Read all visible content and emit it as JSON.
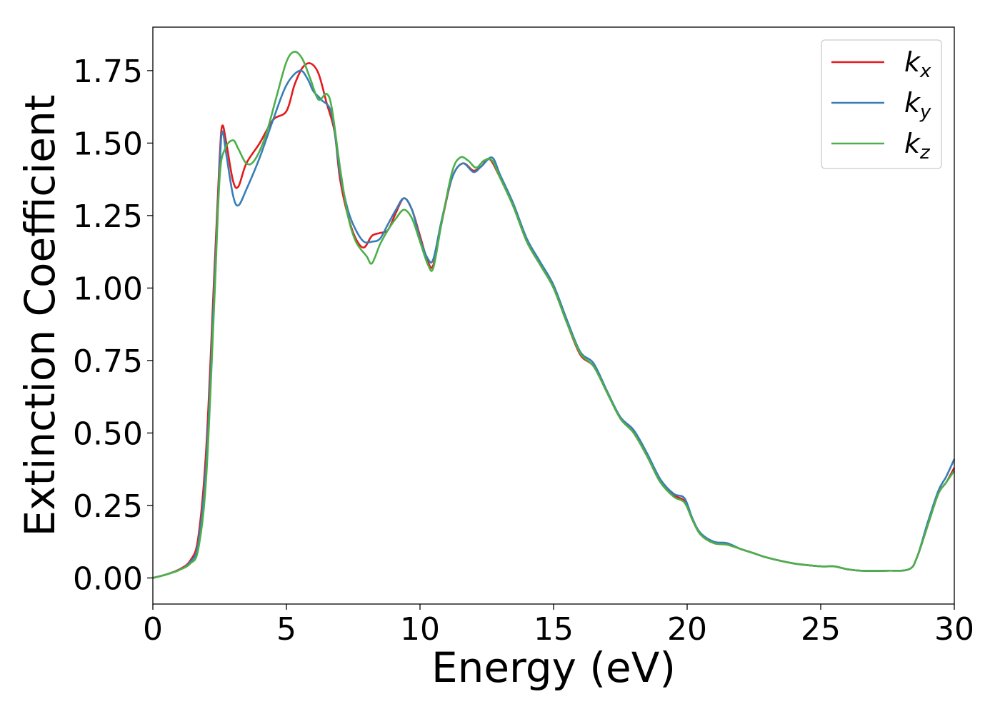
{
  "chart_data": {
    "type": "line",
    "xlabel": "Energy (eV)",
    "ylabel": "Extinction Coefficient",
    "xlim": [
      0,
      30
    ],
    "ylim": [
      -0.09,
      1.9
    ],
    "x_ticks": [
      "0",
      "5",
      "10",
      "15",
      "20",
      "25",
      "30"
    ],
    "y_ticks": [
      "0.00",
      "0.25",
      "0.50",
      "0.75",
      "1.00",
      "1.25",
      "1.50",
      "1.75"
    ],
    "grid": false,
    "legend_position": "top-right",
    "series": [
      {
        "name": "k",
        "name_sub": "x",
        "color": "#e41a1c",
        "points": [
          [
            0,
            0
          ],
          [
            0.5,
            0.012
          ],
          [
            1,
            0.03
          ],
          [
            1.4,
            0.06
          ],
          [
            1.7,
            0.14
          ],
          [
            2.0,
            0.45
          ],
          [
            2.3,
            1.05
          ],
          [
            2.5,
            1.45
          ],
          [
            2.6,
            1.56
          ],
          [
            2.75,
            1.5
          ],
          [
            3.0,
            1.37
          ],
          [
            3.2,
            1.35
          ],
          [
            3.5,
            1.43
          ],
          [
            4.0,
            1.5
          ],
          [
            4.5,
            1.58
          ],
          [
            5.0,
            1.61
          ],
          [
            5.3,
            1.7
          ],
          [
            5.6,
            1.76
          ],
          [
            5.9,
            1.775
          ],
          [
            6.2,
            1.74
          ],
          [
            6.5,
            1.64
          ],
          [
            6.8,
            1.54
          ],
          [
            7.0,
            1.38
          ],
          [
            7.3,
            1.25
          ],
          [
            7.6,
            1.17
          ],
          [
            7.9,
            1.14
          ],
          [
            8.2,
            1.18
          ],
          [
            8.5,
            1.19
          ],
          [
            8.8,
            1.2
          ],
          [
            9.1,
            1.26
          ],
          [
            9.4,
            1.31
          ],
          [
            9.7,
            1.27
          ],
          [
            10.0,
            1.18
          ],
          [
            10.3,
            1.09
          ],
          [
            10.5,
            1.08
          ],
          [
            10.8,
            1.22
          ],
          [
            11.2,
            1.38
          ],
          [
            11.6,
            1.43
          ],
          [
            12.0,
            1.405
          ],
          [
            12.3,
            1.42
          ],
          [
            12.6,
            1.445
          ],
          [
            13.0,
            1.38
          ],
          [
            13.5,
            1.28
          ],
          [
            14.0,
            1.16
          ],
          [
            14.5,
            1.08
          ],
          [
            15.0,
            1.0
          ],
          [
            15.5,
            0.88
          ],
          [
            16.0,
            0.77
          ],
          [
            16.5,
            0.73
          ],
          [
            17.0,
            0.64
          ],
          [
            17.5,
            0.55
          ],
          [
            18.0,
            0.5
          ],
          [
            18.5,
            0.42
          ],
          [
            19.0,
            0.33
          ],
          [
            19.5,
            0.285
          ],
          [
            19.9,
            0.265
          ],
          [
            20.2,
            0.2
          ],
          [
            20.5,
            0.15
          ],
          [
            21.0,
            0.12
          ],
          [
            21.5,
            0.115
          ],
          [
            22.0,
            0.1
          ],
          [
            22.5,
            0.085
          ],
          [
            23.0,
            0.07
          ],
          [
            24.0,
            0.05
          ],
          [
            25.0,
            0.04
          ],
          [
            25.5,
            0.04
          ],
          [
            26.0,
            0.03
          ],
          [
            26.5,
            0.025
          ],
          [
            27.5,
            0.025
          ],
          [
            28.3,
            0.03
          ],
          [
            28.6,
            0.07
          ],
          [
            29.0,
            0.18
          ],
          [
            29.4,
            0.29
          ],
          [
            29.7,
            0.33
          ],
          [
            30.0,
            0.38
          ]
        ]
      },
      {
        "name": "k",
        "name_sub": "y",
        "color": "#377eb8",
        "points": [
          [
            0,
            0
          ],
          [
            0.5,
            0.012
          ],
          [
            1,
            0.028
          ],
          [
            1.4,
            0.055
          ],
          [
            1.7,
            0.12
          ],
          [
            2.0,
            0.4
          ],
          [
            2.3,
            1.0
          ],
          [
            2.5,
            1.42
          ],
          [
            2.6,
            1.54
          ],
          [
            2.75,
            1.46
          ],
          [
            3.0,
            1.32
          ],
          [
            3.2,
            1.285
          ],
          [
            3.5,
            1.34
          ],
          [
            4.0,
            1.45
          ],
          [
            4.5,
            1.58
          ],
          [
            5.0,
            1.7
          ],
          [
            5.5,
            1.75
          ],
          [
            5.8,
            1.72
          ],
          [
            6.0,
            1.68
          ],
          [
            6.3,
            1.65
          ],
          [
            6.7,
            1.6
          ],
          [
            7.0,
            1.4
          ],
          [
            7.3,
            1.27
          ],
          [
            7.6,
            1.2
          ],
          [
            7.9,
            1.16
          ],
          [
            8.2,
            1.16
          ],
          [
            8.5,
            1.17
          ],
          [
            8.8,
            1.22
          ],
          [
            9.1,
            1.27
          ],
          [
            9.4,
            1.31
          ],
          [
            9.7,
            1.27
          ],
          [
            10.0,
            1.17
          ],
          [
            10.3,
            1.1
          ],
          [
            10.5,
            1.1
          ],
          [
            10.8,
            1.23
          ],
          [
            11.2,
            1.38
          ],
          [
            11.6,
            1.43
          ],
          [
            12.0,
            1.4
          ],
          [
            12.3,
            1.42
          ],
          [
            12.7,
            1.45
          ],
          [
            13.0,
            1.39
          ],
          [
            13.5,
            1.29
          ],
          [
            14.0,
            1.17
          ],
          [
            14.5,
            1.09
          ],
          [
            15.0,
            1.01
          ],
          [
            15.5,
            0.89
          ],
          [
            16.0,
            0.78
          ],
          [
            16.5,
            0.74
          ],
          [
            17.0,
            0.645
          ],
          [
            17.5,
            0.555
          ],
          [
            18.0,
            0.51
          ],
          [
            18.5,
            0.43
          ],
          [
            19.0,
            0.34
          ],
          [
            19.5,
            0.29
          ],
          [
            19.9,
            0.275
          ],
          [
            20.2,
            0.205
          ],
          [
            20.5,
            0.155
          ],
          [
            21.0,
            0.125
          ],
          [
            21.5,
            0.12
          ],
          [
            22.0,
            0.1
          ],
          [
            22.5,
            0.085
          ],
          [
            23.0,
            0.07
          ],
          [
            24.0,
            0.05
          ],
          [
            25.0,
            0.04
          ],
          [
            25.5,
            0.04
          ],
          [
            26.0,
            0.03
          ],
          [
            26.5,
            0.025
          ],
          [
            27.5,
            0.025
          ],
          [
            28.3,
            0.03
          ],
          [
            28.6,
            0.07
          ],
          [
            29.0,
            0.19
          ],
          [
            29.4,
            0.3
          ],
          [
            29.7,
            0.35
          ],
          [
            30.0,
            0.41
          ]
        ]
      },
      {
        "name": "k",
        "name_sub": "z",
        "color": "#4daf4a",
        "points": [
          [
            0,
            0
          ],
          [
            0.5,
            0.012
          ],
          [
            1,
            0.028
          ],
          [
            1.4,
            0.05
          ],
          [
            1.7,
            0.1
          ],
          [
            2.0,
            0.35
          ],
          [
            2.3,
            0.95
          ],
          [
            2.5,
            1.38
          ],
          [
            2.7,
            1.48
          ],
          [
            3.0,
            1.51
          ],
          [
            3.2,
            1.48
          ],
          [
            3.5,
            1.43
          ],
          [
            3.8,
            1.44
          ],
          [
            4.2,
            1.52
          ],
          [
            4.6,
            1.65
          ],
          [
            5.0,
            1.78
          ],
          [
            5.3,
            1.815
          ],
          [
            5.6,
            1.79
          ],
          [
            5.9,
            1.72
          ],
          [
            6.2,
            1.65
          ],
          [
            6.5,
            1.67
          ],
          [
            6.7,
            1.62
          ],
          [
            7.0,
            1.42
          ],
          [
            7.3,
            1.25
          ],
          [
            7.6,
            1.16
          ],
          [
            8.0,
            1.11
          ],
          [
            8.2,
            1.085
          ],
          [
            8.5,
            1.15
          ],
          [
            8.8,
            1.2
          ],
          [
            9.1,
            1.24
          ],
          [
            9.4,
            1.27
          ],
          [
            9.7,
            1.24
          ],
          [
            10.0,
            1.16
          ],
          [
            10.3,
            1.08
          ],
          [
            10.5,
            1.07
          ],
          [
            10.8,
            1.22
          ],
          [
            11.2,
            1.4
          ],
          [
            11.5,
            1.45
          ],
          [
            11.8,
            1.44
          ],
          [
            12.1,
            1.415
          ],
          [
            12.4,
            1.44
          ],
          [
            12.7,
            1.44
          ],
          [
            13.0,
            1.38
          ],
          [
            13.5,
            1.28
          ],
          [
            14.0,
            1.16
          ],
          [
            14.5,
            1.08
          ],
          [
            15.0,
            1.0
          ],
          [
            15.5,
            0.88
          ],
          [
            16.0,
            0.775
          ],
          [
            16.5,
            0.73
          ],
          [
            17.0,
            0.64
          ],
          [
            17.5,
            0.55
          ],
          [
            18.0,
            0.5
          ],
          [
            18.5,
            0.42
          ],
          [
            19.0,
            0.33
          ],
          [
            19.5,
            0.28
          ],
          [
            19.9,
            0.26
          ],
          [
            20.2,
            0.2
          ],
          [
            20.5,
            0.15
          ],
          [
            21.0,
            0.12
          ],
          [
            21.5,
            0.115
          ],
          [
            22.0,
            0.1
          ],
          [
            22.5,
            0.085
          ],
          [
            23.0,
            0.07
          ],
          [
            24.0,
            0.05
          ],
          [
            25.0,
            0.04
          ],
          [
            25.5,
            0.04
          ],
          [
            26.0,
            0.03
          ],
          [
            26.5,
            0.025
          ],
          [
            27.5,
            0.025
          ],
          [
            28.3,
            0.03
          ],
          [
            28.6,
            0.07
          ],
          [
            29.0,
            0.18
          ],
          [
            29.4,
            0.29
          ],
          [
            29.7,
            0.33
          ],
          [
            30.0,
            0.37
          ]
        ]
      }
    ]
  }
}
